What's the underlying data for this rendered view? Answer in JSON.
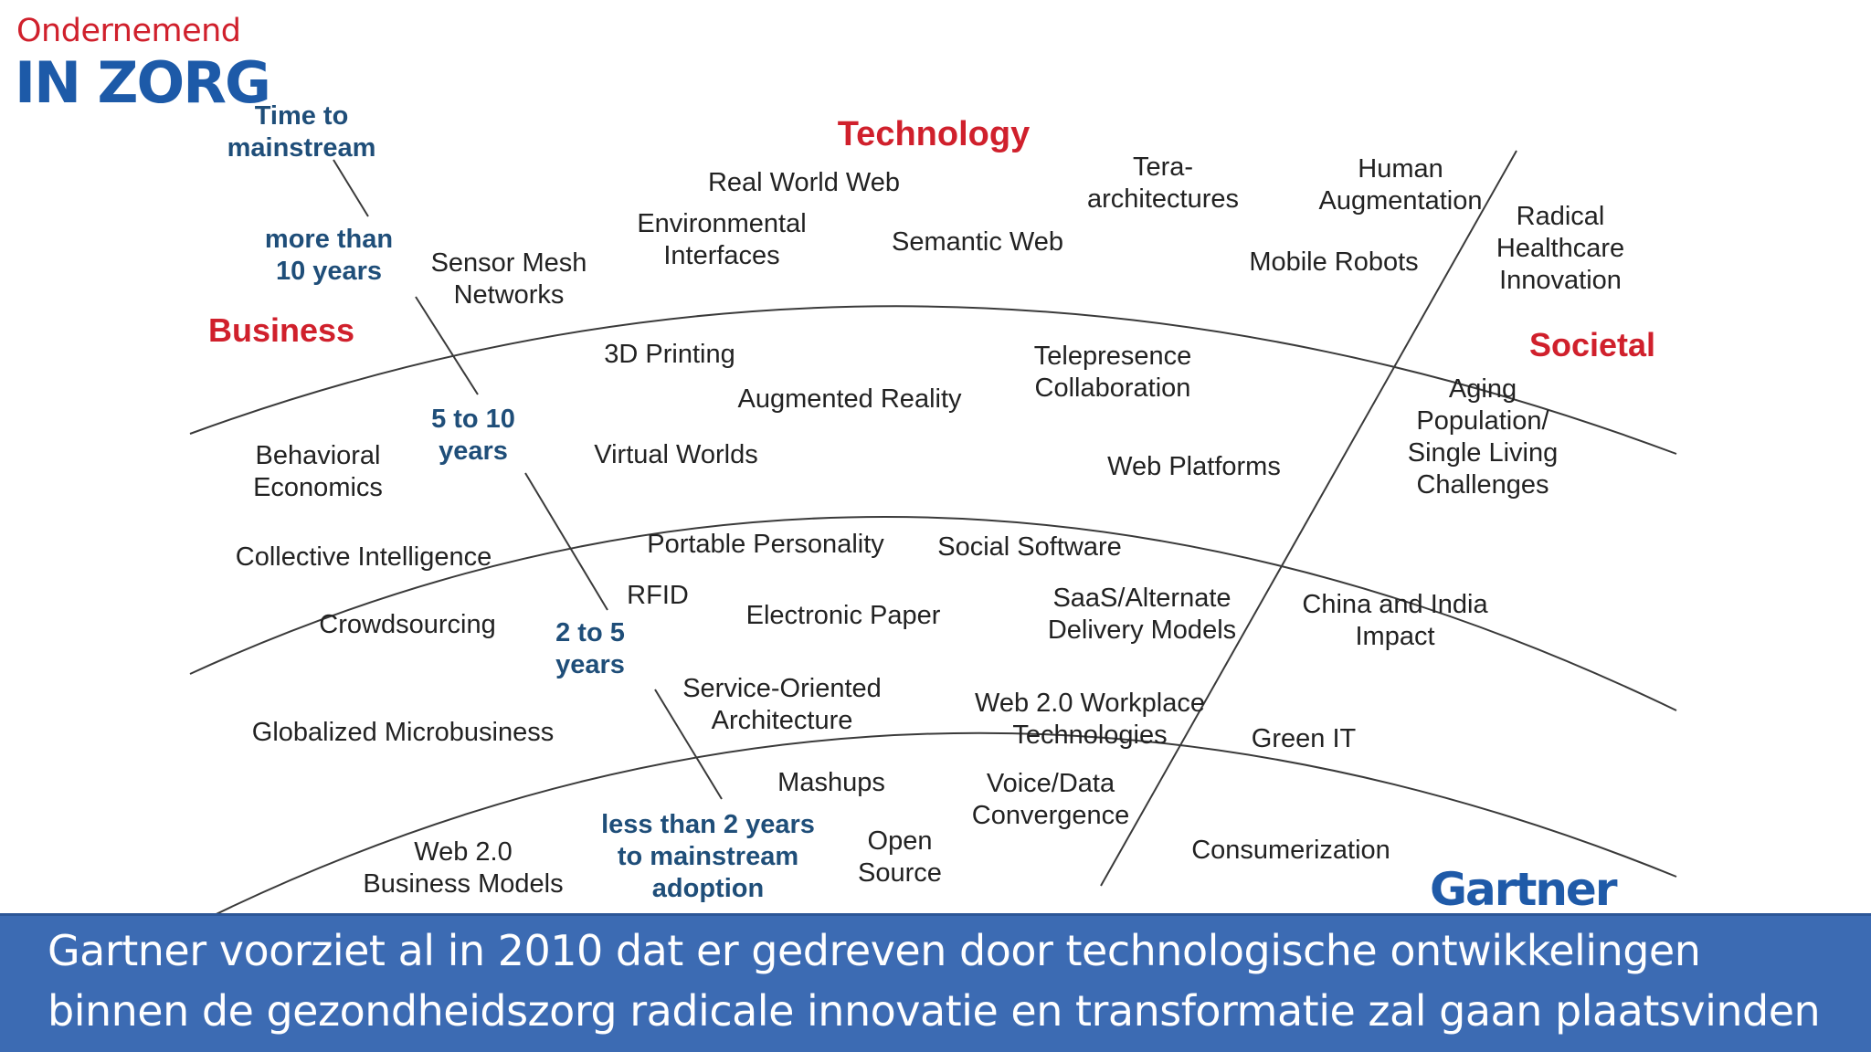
{
  "logo": {
    "top": "Ondernemend",
    "main": "IN ZORG"
  },
  "axis": {
    "time_label": [
      "Time to",
      "mainstream"
    ],
    "more_than_10": [
      "more than",
      "10 years"
    ],
    "five_to_ten": [
      "5 to 10",
      "years"
    ],
    "two_to_five": [
      "2 to 5",
      "years"
    ],
    "less_than_2": [
      "less than 2 years",
      "to mainstream",
      "adoption"
    ]
  },
  "sectors": {
    "technology": "Technology",
    "business": "Business",
    "societal": "Societal"
  },
  "items": {
    "real_world_web": "Real World Web",
    "environmental_interfaces": [
      "Environmental",
      "Interfaces"
    ],
    "semantic_web": "Semantic Web",
    "tera_architectures": [
      "Tera-",
      "architectures"
    ],
    "human_augmentation": [
      "Human",
      "Augmentation"
    ],
    "radical_healthcare": [
      "Radical",
      "Healthcare",
      "Innovation"
    ],
    "mobile_robots": "Mobile Robots",
    "sensor_mesh": [
      "Sensor Mesh",
      "Networks"
    ],
    "printing_3d": "3D Printing",
    "augmented_reality": "Augmented Reality",
    "telepresence": [
      "Telepresence",
      "Collaboration"
    ],
    "aging_population": [
      "Aging",
      "Population/",
      "Single Living",
      "Challenges"
    ],
    "behavioral_economics": [
      "Behavioral",
      "Economics"
    ],
    "virtual_worlds": "Virtual Worlds",
    "web_platforms": "Web Platforms",
    "collective_intelligence": "Collective Intelligence",
    "portable_personality": "Portable Personality",
    "social_software": "Social Software",
    "rfid": "RFID",
    "electronic_paper": "Electronic Paper",
    "saas": [
      "SaaS/Alternate",
      "Delivery Models"
    ],
    "china_india": [
      "China and India",
      "Impact"
    ],
    "crowdsourcing": "Crowdsourcing",
    "soa": [
      "Service-Oriented",
      "Architecture"
    ],
    "web20_workplace": [
      "Web 2.0 Workplace",
      "Technologies"
    ],
    "globalized_microbusiness": "Globalized Microbusiness",
    "green_it": "Green IT",
    "mashups": "Mashups",
    "voice_data": [
      "Voice/Data",
      "Convergence"
    ],
    "web20_business": [
      "Web 2.0",
      "Business Models"
    ],
    "open_source": [
      "Open",
      "Source"
    ],
    "consumerization": "Consumerization"
  },
  "brand": "Gartner",
  "caption": [
    "Gartner voorziet al in 2010 dat er gedreven door technologische ontwikkelingen",
    "binnen de gezondheidszorg radicale innovatie en transformatie zal gaan plaatsvinden"
  ],
  "colors": {
    "label_blue": "#1f4e79",
    "sector_red": "#d0202c",
    "caption_bg": "#3c6bb3",
    "brand_blue": "#1f5aa8"
  }
}
